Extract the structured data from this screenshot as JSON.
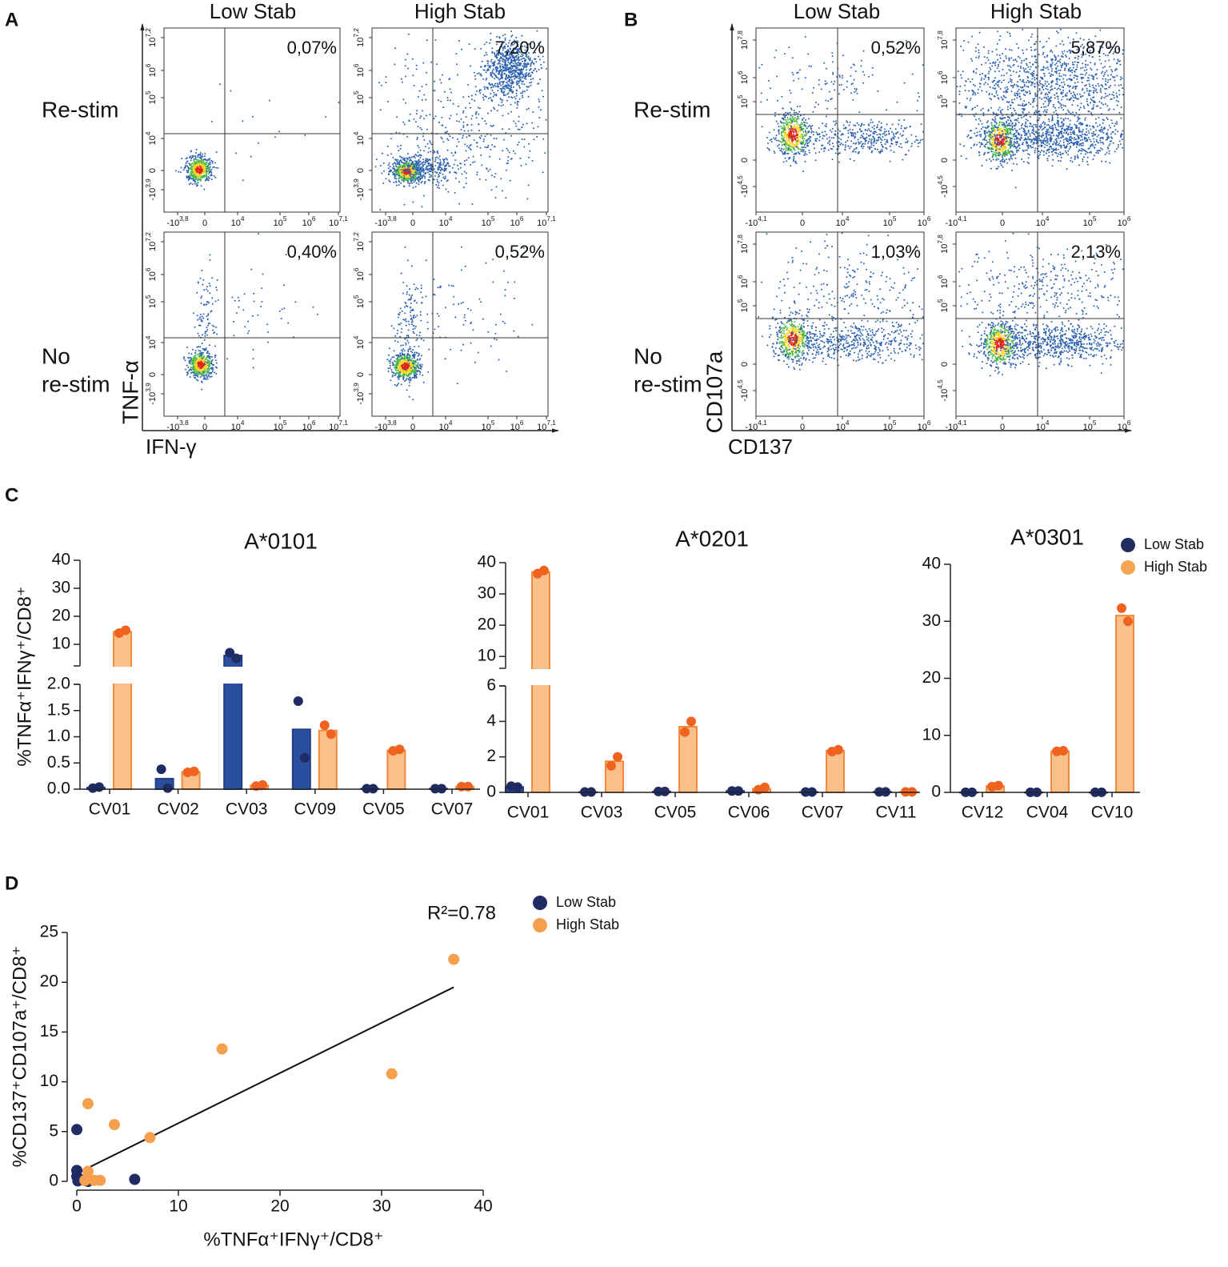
{
  "panel_labels": [
    "A",
    "B",
    "C",
    "D"
  ],
  "flow_panels": [
    {
      "columns": [
        "Low Stab",
        "High Stab"
      ],
      "rows": [
        [
          "Re-stim"
        ],
        [
          "No",
          "re-stim"
        ]
      ],
      "percentages": [
        [
          "0,07%",
          "7,20%"
        ],
        [
          "0,40%",
          "0,52%"
        ]
      ],
      "xticks": [
        {
          "base": "-10",
          "exp": "3,8"
        },
        {
          "base": "0"
        },
        {
          "base": "10",
          "exp": "4"
        },
        {
          "base": "10",
          "exp": "5"
        },
        {
          "base": "10",
          "exp": "6"
        },
        {
          "base": "10",
          "exp": "7,1"
        }
      ],
      "yticks": [
        {
          "base": "-10",
          "exp": "3,9"
        },
        {
          "base": "0"
        },
        {
          "base": "10",
          "exp": "4"
        },
        {
          "base": "10",
          "exp": "5"
        },
        {
          "base": "10",
          "exp": "6"
        },
        {
          "base": "10",
          "exp": "7,2"
        }
      ],
      "y_label": "TNF-α",
      "x_label": "IFN-γ"
    },
    {
      "columns": [
        "Low Stab",
        "High Stab"
      ],
      "rows": [
        [
          "Re-stim"
        ],
        [
          "No",
          "re-stim"
        ]
      ],
      "percentages": [
        [
          "0,52%",
          "5,87%"
        ],
        [
          "1,03%",
          "2,13%"
        ]
      ],
      "xticks": [
        {
          "base": "-10",
          "exp": "4,1"
        },
        {
          "base": "0"
        },
        {
          "base": "10",
          "exp": "4"
        },
        {
          "base": "10",
          "exp": "5"
        },
        {
          "base": "10",
          "exp": "6"
        }
      ],
      "yticks": [
        {
          "base": "-10",
          "exp": "4,5"
        },
        {
          "base": "0"
        },
        {
          "base": "10",
          "exp": "5"
        },
        {
          "base": "10",
          "exp": "6"
        },
        {
          "base": "10",
          "exp": "7,8"
        }
      ],
      "y_label": "CD107a",
      "x_label": "CD137"
    }
  ],
  "chart_data": [
    {
      "type": "bar",
      "title": "A*0101",
      "y_label": "%TNFα⁺IFNγ⁺/CD8⁺",
      "categories": [
        "CV01",
        "CV02",
        "CV03",
        "CV09",
        "CV05",
        "CV07"
      ],
      "ylim": [
        0,
        40
      ],
      "ybreak": [
        2,
        2.3
      ],
      "yticks": [
        {
          "value": 0,
          "label": "0.0"
        },
        {
          "value": 0.5,
          "label": "0.5"
        },
        {
          "value": 1,
          "label": "1.0"
        },
        {
          "value": 1.5,
          "label": "1.5"
        },
        {
          "value": 2,
          "label": "2.0"
        },
        10,
        20,
        30,
        40
      ],
      "series": [
        {
          "color": "#2a4f9e",
          "edge_color": "#223f85",
          "point_color": "#1f2b63",
          "values": [
            0.03,
            0.2,
            6,
            1.14,
            0.01,
            0.01
          ],
          "points": [
            [
              0.02,
              0.04
            ],
            [
              0.38,
              0.02
            ],
            [
              7,
              5
            ],
            [
              1.68,
              0.6
            ],
            [
              0.01,
              0.01
            ],
            [
              0.01,
              0.01
            ]
          ]
        },
        {
          "color": "#f9c08a",
          "edge_color": "#f08a3c",
          "point_color": "#f0621f",
          "values": [
            14.5,
            0.33,
            0.07,
            1.12,
            0.74,
            0.05
          ],
          "points": [
            [
              14,
              15
            ],
            [
              0.32,
              0.34
            ],
            [
              0.06,
              0.08
            ],
            [
              1.22,
              1.05
            ],
            [
              0.73,
              0.76
            ],
            [
              0.05,
              0.05
            ]
          ]
        }
      ]
    },
    {
      "type": "bar",
      "title": "A*0201",
      "categories": [
        "CV01",
        "CV03",
        "CV05",
        "CV06",
        "CV07",
        "CV11"
      ],
      "ylim": [
        0,
        40
      ],
      "ybreak": [
        6,
        6.2
      ],
      "yticks": [
        0,
        2,
        4,
        6,
        10,
        20,
        30,
        40
      ],
      "series": [
        {
          "color": "#2a4f9e",
          "edge_color": "#223f85",
          "point_color": "#1f2b63",
          "values": [
            0.3,
            0.02,
            0.05,
            0.08,
            0.02,
            0.03
          ],
          "points": [
            [
              0.35,
              0.3
            ],
            [
              0.02,
              0.02
            ],
            [
              0.05,
              0.05
            ],
            [
              0.08,
              0.08
            ],
            [
              0.02,
              0.02
            ],
            [
              0.03,
              0.03
            ]
          ]
        },
        {
          "color": "#f9c08a",
          "edge_color": "#f08a3c",
          "point_color": "#f0621f",
          "values": [
            37,
            1.75,
            3.7,
            0.2,
            2.35,
            0.03
          ],
          "points": [
            [
              36.5,
              37.5
            ],
            [
              1.5,
              2.0
            ],
            [
              3.4,
              4.0
            ],
            [
              0.15,
              0.28
            ],
            [
              2.3,
              2.4
            ],
            [
              0.03,
              0.03
            ]
          ]
        }
      ]
    },
    {
      "type": "bar",
      "title": "A*0301",
      "categories": [
        "CV12",
        "CV04",
        "CV10"
      ],
      "ylim": [
        0,
        40
      ],
      "yticks": [
        0,
        10,
        20,
        30,
        40
      ],
      "series": [
        {
          "name": "Low Stab",
          "color": "#2a4f9e",
          "edge_color": "#223f85",
          "point_color": "#1f2b63",
          "legend_color": "#1f2d5f",
          "values": [
            0.02,
            0.02,
            0.02
          ],
          "points": [
            [
              0.02,
              0.02
            ],
            [
              0.02,
              0.02
            ],
            [
              0.02,
              0.02
            ]
          ]
        },
        {
          "name": "High Stab",
          "color": "#f9c08a",
          "edge_color": "#f08a3c",
          "point_color": "#f0621f",
          "legend_color": "#f6a553",
          "values": [
            1.1,
            7.2,
            31
          ],
          "points": [
            [
              1.0,
              1.2
            ],
            [
              7.2,
              7.3
            ],
            [
              32.3,
              30
            ]
          ]
        }
      ]
    },
    {
      "type": "scatter",
      "annotation": "R²=0.78",
      "x_label": "%TNFα⁺IFNγ⁺/CD8⁺",
      "y_label": "%CD137⁺CD107a⁺/CD8⁺",
      "xlim": [
        0,
        40
      ],
      "ylim": [
        0,
        25
      ],
      "xticks": [
        0,
        10,
        20,
        30,
        40
      ],
      "yticks": [
        0,
        5,
        10,
        15,
        20,
        25
      ],
      "series": [
        {
          "name": "Low Stab",
          "color": "#1f2b63",
          "x": [
            0,
            0,
            0,
            0.3,
            0.8,
            1.1,
            5.7,
            0.1
          ],
          "y": [
            5.2,
            1.1,
            0.5,
            0.2,
            0.1,
            0,
            0.2,
            0.05
          ]
        },
        {
          "name": "High Stab",
          "color": "#f5a04c",
          "x": [
            37.1,
            14.3,
            31,
            1.1,
            3.7,
            7.2,
            1.1,
            1.7,
            2.3,
            0.8
          ],
          "y": [
            22.3,
            13.3,
            10.8,
            7.8,
            5.7,
            4.4,
            1.0,
            0.1,
            0.1,
            0.1
          ]
        }
      ],
      "fit": {
        "x": [
          0,
          37.1
        ],
        "y": [
          0.8,
          19.5
        ]
      }
    }
  ]
}
